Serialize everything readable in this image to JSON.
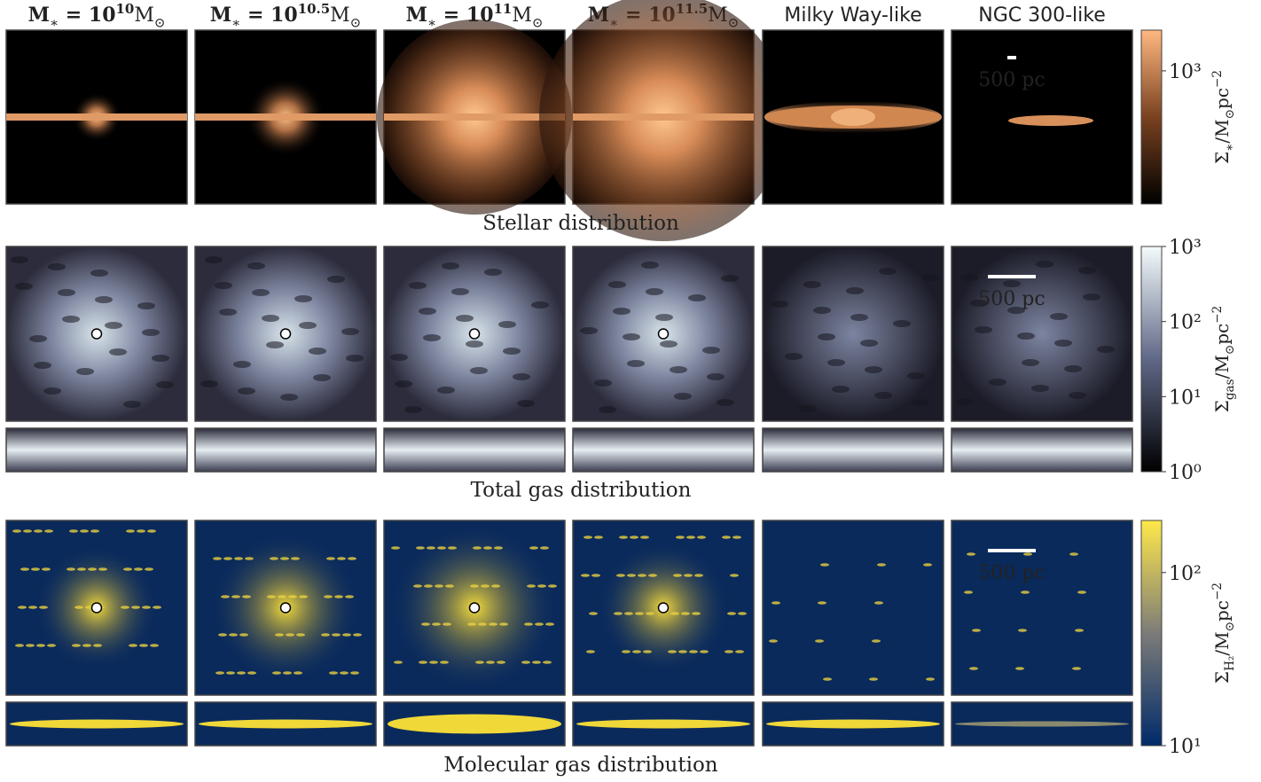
{
  "columns": [
    {
      "color": "#3b1a6b",
      "title": [
        {
          "text": "M",
          "bold": true
        },
        {
          "text": "∗",
          "shift": "sub"
        },
        {
          "text": " = 10",
          "bold": true
        },
        {
          "text": "10",
          "shift": "sup",
          "bold": true
        },
        {
          "text": "M"
        },
        {
          "text": "⊙",
          "shift": "sub"
        }
      ]
    },
    {
      "color": "#8c3a8e",
      "title": [
        {
          "text": "M",
          "bold": true
        },
        {
          "text": "∗",
          "shift": "sub"
        },
        {
          "text": " = 10",
          "bold": true
        },
        {
          "text": "10.5",
          "shift": "sup",
          "bold": true
        },
        {
          "text": "M"
        },
        {
          "text": "⊙",
          "shift": "sub"
        }
      ]
    },
    {
      "color": "#d8507a",
      "title": [
        {
          "text": "M",
          "bold": true
        },
        {
          "text": "∗",
          "shift": "sub"
        },
        {
          "text": " = 10",
          "bold": true
        },
        {
          "text": "11",
          "shift": "sup",
          "bold": true
        },
        {
          "text": "M"
        },
        {
          "text": "⊙",
          "shift": "sub"
        }
      ]
    },
    {
      "color": "#f4a56c",
      "title": [
        {
          "text": "M",
          "bold": true
        },
        {
          "text": "∗",
          "shift": "sub"
        },
        {
          "text": " = 10",
          "bold": true
        },
        {
          "text": "11.5",
          "shift": "sup",
          "bold": true
        },
        {
          "text": "M"
        },
        {
          "text": "⊙",
          "shift": "sub"
        }
      ]
    },
    {
      "color": "#333333",
      "title": [
        {
          "text": "Milky Way-like"
        }
      ]
    },
    {
      "color": "#6aaa88",
      "title": [
        {
          "text": "NGC 300-like"
        }
      ]
    }
  ],
  "rows": [
    {
      "label": "Stellar distribution",
      "scale_bar": "500 pc",
      "colorbar": {
        "scale": "log",
        "lim": [
          50,
          2500
        ],
        "ticks": [
          {
            "value": 1000,
            "label": "10³"
          }
        ],
        "label": [
          {
            "text": "Σ"
          },
          {
            "text": "∗",
            "shift": "sub"
          },
          {
            "text": "/M"
          },
          {
            "text": "⊙",
            "shift": "sub"
          },
          {
            "text": "pc"
          },
          {
            "text": "−2",
            "shift": "sup"
          }
        ]
      }
    },
    {
      "label": "Total gas distribution",
      "scale_bar": "500 pc",
      "colorbar": {
        "scale": "log",
        "lim": [
          1,
          1000
        ],
        "ticks": [
          {
            "value": 1,
            "label": "10⁰"
          },
          {
            "value": 10,
            "label": "10¹"
          },
          {
            "value": 100,
            "label": "10²"
          },
          {
            "value": 1000,
            "label": "10³"
          }
        ],
        "label": [
          {
            "text": "Σ"
          },
          {
            "text": "gas",
            "shift": "sub"
          },
          {
            "text": "/M"
          },
          {
            "text": "⊙",
            "shift": "sub"
          },
          {
            "text": "pc"
          },
          {
            "text": "−2",
            "shift": "sup"
          }
        ]
      }
    },
    {
      "label": "Molecular gas distribution",
      "scale_bar": "500 pc",
      "colorbar": {
        "scale": "log",
        "lim": [
          10,
          200
        ],
        "ticks": [
          {
            "value": 10,
            "label": "10¹"
          },
          {
            "value": 100,
            "label": "10²"
          }
        ],
        "label": [
          {
            "text": "Σ"
          },
          {
            "text": "H₂",
            "shift": "sub"
          },
          {
            "text": "/M"
          },
          {
            "text": "⊙",
            "shift": "sub"
          },
          {
            "text": "pc"
          },
          {
            "text": "−2",
            "shift": "sup"
          }
        ]
      }
    }
  ]
}
